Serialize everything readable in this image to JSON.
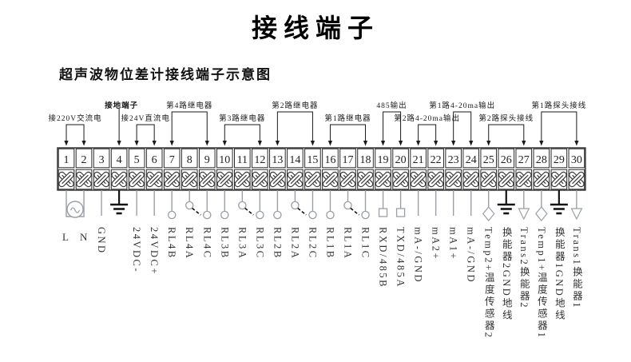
{
  "page": {
    "title": "接线端子",
    "subtitle": "超声波物位差计接线端子示意图"
  },
  "diagram": {
    "colors": {
      "bracket_line": "#1a1a1a",
      "box_line": "#2a2a2a",
      "screw_x": "#3a3a3a",
      "wire": "#9aa0a5",
      "ground": "#141414",
      "text": "#1a1a1a"
    },
    "groups": [
      {
        "label": "接220V交流电",
        "from": 1,
        "to": 2,
        "row": "low"
      },
      {
        "label": "接地端子",
        "from": 4,
        "to": 4,
        "row": "high",
        "bold": true
      },
      {
        "label": "接24V直流电",
        "from": 5,
        "to": 6,
        "row": "low"
      },
      {
        "label": "第4路继电器",
        "from": 7,
        "to": 9,
        "row": "high"
      },
      {
        "label": "第3路继电器",
        "from": 10,
        "to": 12,
        "row": "low"
      },
      {
        "label": "第2路继电器",
        "from": 13,
        "to": 15,
        "row": "high"
      },
      {
        "label": "第1路继电器",
        "from": 16,
        "to": 18,
        "row": "low"
      },
      {
        "label": "485输出",
        "from": 19,
        "to": 20,
        "row": "high"
      },
      {
        "label": "第2路4-20ma输出",
        "from": 21,
        "to": 22,
        "row": "low"
      },
      {
        "label": "第1路4-20ma输出",
        "from": 23,
        "to": 24,
        "row": "high"
      },
      {
        "label": "第2路探头接线",
        "from": 25,
        "to": 27,
        "row": "low"
      },
      {
        "label": "第1路探头接线",
        "from": 28,
        "to": 30,
        "row": "high"
      }
    ],
    "terminals": [
      {
        "num": "1",
        "label": "L",
        "symbol": "ac",
        "label_orient": "h"
      },
      {
        "num": "2",
        "label": "N",
        "symbol": "ac",
        "label_orient": "h"
      },
      {
        "num": "3",
        "label": "GND",
        "symbol": "wire"
      },
      {
        "num": "4",
        "label": "",
        "symbol": "ground"
      },
      {
        "num": "5",
        "label": "24VDC-",
        "symbol": "wire"
      },
      {
        "num": "6",
        "label": "24VDC+",
        "symbol": "wire"
      },
      {
        "num": "7",
        "label": "RL4B",
        "symbol": "circle"
      },
      {
        "num": "8",
        "label": "RL4A",
        "symbol": "switch"
      },
      {
        "num": "9",
        "label": "RL4C",
        "symbol": "circle"
      },
      {
        "num": "10",
        "label": "RL3B",
        "symbol": "circle"
      },
      {
        "num": "11",
        "label": "RL3A",
        "symbol": "switch"
      },
      {
        "num": "12",
        "label": "RL3C",
        "symbol": "circle"
      },
      {
        "num": "13",
        "label": "RL2B",
        "symbol": "circle"
      },
      {
        "num": "14",
        "label": "RL2A",
        "symbol": "switch"
      },
      {
        "num": "15",
        "label": "RL2C",
        "symbol": "circle"
      },
      {
        "num": "16",
        "label": "RL1B",
        "symbol": "circle"
      },
      {
        "num": "17",
        "label": "RL1A",
        "symbol": "switch"
      },
      {
        "num": "18",
        "label": "RL1C",
        "symbol": "circle"
      },
      {
        "num": "19",
        "label": "RXD/485B",
        "symbol": "square"
      },
      {
        "num": "20",
        "label": "TXD/485A",
        "symbol": "square"
      },
      {
        "num": "21",
        "label": "mA-/GND",
        "symbol": "wire"
      },
      {
        "num": "22",
        "label": "mA2+",
        "symbol": "wire"
      },
      {
        "num": "23",
        "label": "mA1+",
        "symbol": "wire"
      },
      {
        "num": "24",
        "label": "mA-/GND",
        "symbol": "wire"
      },
      {
        "num": "25",
        "label": "Temp2+温度传感器2",
        "symbol": "diamond"
      },
      {
        "num": "26",
        "label": "换能器2GND地线",
        "symbol": "ground"
      },
      {
        "num": "27",
        "label": "Trans2换能器2",
        "symbol": "triangle"
      },
      {
        "num": "28",
        "label": "Temp1+温度传感器1",
        "symbol": "diamond"
      },
      {
        "num": "29",
        "label": "换能器1GND地线",
        "symbol": "ground"
      },
      {
        "num": "30",
        "label": "Trans1换能器1",
        "symbol": "triangle"
      }
    ]
  }
}
